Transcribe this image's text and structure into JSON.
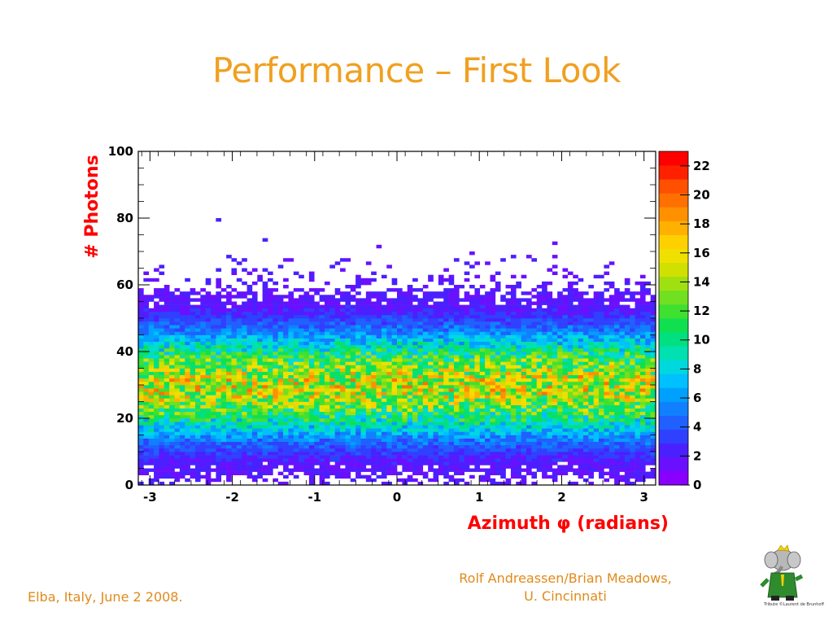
{
  "slide": {
    "title": "Performance – First Look",
    "footer_left": "Elba, Italy, June 2 2008.",
    "footer_right_line1": "Rolf Andreassen/Brian Meadows,",
    "footer_right_line2": "U. Cincinnati",
    "credit": "Tribute ©Laurent de Brunhoff"
  },
  "chart_data": {
    "type": "heatmap",
    "title": "",
    "xlabel": "Azimuth φ (radians)",
    "ylabel": "# Photons",
    "xlim": [
      -3.1416,
      3.1416
    ],
    "ylim": [
      0,
      100
    ],
    "x_ticks": [
      -3,
      -2,
      -1,
      0,
      1,
      2,
      3
    ],
    "y_ticks": [
      0,
      20,
      40,
      60,
      80,
      100
    ],
    "colorbar": {
      "min": 0,
      "max": 23,
      "ticks": [
        0,
        2,
        4,
        6,
        8,
        10,
        12,
        14,
        16,
        18,
        20,
        22
      ]
    },
    "bins": {
      "x": 100,
      "y": 100
    },
    "distribution": {
      "description_peak_y": 30,
      "peak_count": 15,
      "width_y": 11,
      "uniform_in_x": true
    },
    "colors": {
      "axis_label": "#ff0000",
      "title": "#f0a020"
    }
  }
}
